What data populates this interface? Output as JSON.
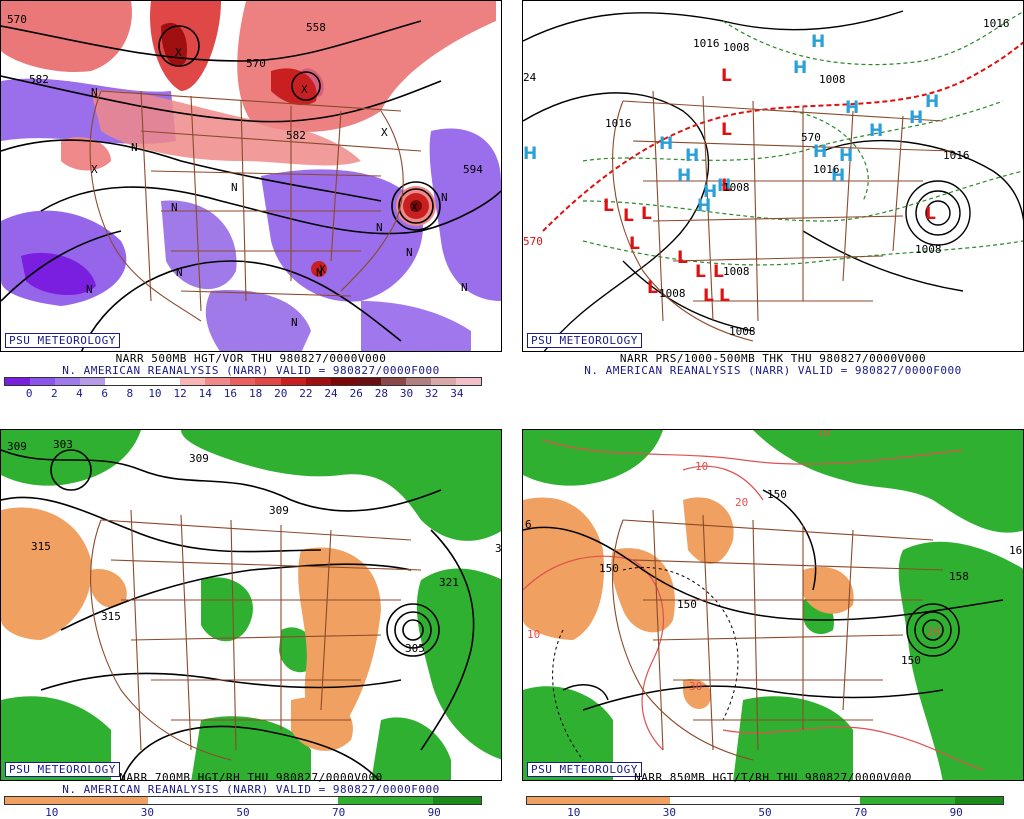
{
  "panels": [
    {
      "id": "p1",
      "badge": "PSU METEOROLOGY",
      "caption_line1": "NARR 500MB HGT/VOR THU 980827/0000V000",
      "caption_line2": "N. AMERICAN REANALYSIS (NARR) VALID = 980827/0000F000",
      "colorbar_colors": [
        "#7a1fe0",
        "#8a55e8",
        "#a07ae8",
        "#b79ae8",
        "#ffffff",
        "#ffffff",
        "#ffffff",
        "#f7b5b5",
        "#f08a8a",
        "#e86060",
        "#e04848",
        "#c82020",
        "#a01010",
        "#7a0808",
        "#6a1010",
        "#8a4848",
        "#b08080",
        "#d8a8a8",
        "#f0c0c8"
      ],
      "tick_labels": [
        "0",
        "2",
        "4",
        "6",
        "8",
        "10",
        "12",
        "14",
        "16",
        "18",
        "20",
        "22",
        "24",
        "26",
        "28",
        "30",
        "32",
        "34"
      ],
      "map_labels": [
        "570",
        "582",
        "558",
        "570",
        "582",
        "594",
        "N",
        "N",
        "N",
        "N",
        "N",
        "N",
        "N",
        "N",
        "N",
        "N",
        "N",
        "N",
        "X",
        "X",
        "X",
        "X",
        "X",
        "X"
      ]
    },
    {
      "id": "p2",
      "badge": "PSU METEOROLOGY",
      "caption_line1": "NARR PRS/1000-500MB THK THU 980827/0000V000",
      "caption_line2": "N. AMERICAN REANALYSIS (NARR) VALID = 980827/0000F000",
      "highs": [
        "H",
        "H",
        "H",
        "H",
        "H",
        "H",
        "H",
        "H",
        "H",
        "H",
        "H",
        "H",
        "H",
        "H",
        "H",
        "H"
      ],
      "lows": [
        "L",
        "L",
        "L",
        "L",
        "L",
        "L",
        "L",
        "L",
        "L",
        "L",
        "L",
        "L",
        "L",
        "L"
      ],
      "map_labels": [
        "1016",
        "1008",
        "1008",
        "1016",
        "1016",
        "1016",
        "1016",
        "1008",
        "1008",
        "1008",
        "1008",
        "1008",
        "570",
        "570",
        "24"
      ]
    },
    {
      "id": "p3",
      "badge": "PSU METEOROLOGY",
      "caption_line1": "NARR 700MB HGT/RH THU 980827/0000V000",
      "caption_line2": "N. AMERICAN REANALYSIS (NARR) VALID = 980827/0000F000",
      "colorbar_colors": [
        "#f0a060",
        "#f0a060",
        "#f0a060",
        "#ffffff",
        "#ffffff",
        "#ffffff",
        "#ffffff",
        "#30b030",
        "#30b030",
        "#1a8a1a"
      ],
      "tick_labels": [
        "10",
        "30",
        "50",
        "70",
        "90"
      ],
      "map_labels": [
        "309",
        "309",
        "309",
        "303",
        "315",
        "315",
        "321",
        "305",
        "3"
      ]
    },
    {
      "id": "p4",
      "badge": "PSU METEOROLOGY",
      "caption_line1": "NARR 850MB HGT/T/RH THU 980827/0000V000",
      "caption_line2": "",
      "colorbar_colors": [
        "#f0a060",
        "#f0a060",
        "#f0a060",
        "#ffffff",
        "#ffffff",
        "#ffffff",
        "#ffffff",
        "#30b030",
        "#30b030",
        "#1a8a1a"
      ],
      "tick_labels": [
        "10",
        "30",
        "50",
        "70",
        "90"
      ],
      "map_labels": [
        "150",
        "150",
        "150",
        "158",
        "150",
        "10",
        "10",
        "20",
        "20",
        "30",
        "10",
        "16",
        "6"
      ]
    }
  ],
  "colors": {
    "border_state": "#8b4a2b",
    "contour": "#000000",
    "high": "#2aa0d8",
    "low": "#e01010",
    "rh_moist": "#30b030",
    "rh_dry": "#f0a060",
    "vort_neg": "#8a55e8",
    "vort_pos": "#f08a8a",
    "thickness_dash": "#2a8a2a",
    "temp_red": "#e05050"
  }
}
